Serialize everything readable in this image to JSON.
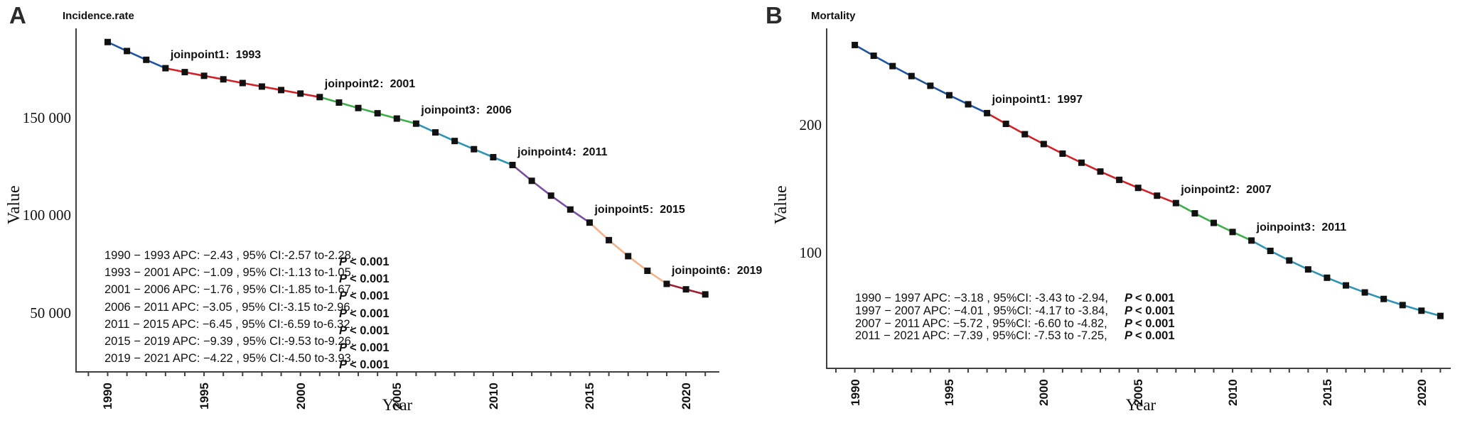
{
  "figure": {
    "background": "#ffffff"
  },
  "chart_data": [
    {
      "type": "line",
      "panel_label": "A",
      "title": "Incidence.rate",
      "xlabel": "Year",
      "ylabel": "Value",
      "grid": false,
      "legend_position": "none",
      "marker": "square",
      "marker_color": "#111111",
      "x": [
        1990,
        1991,
        1992,
        1993,
        1994,
        1995,
        1996,
        1997,
        1998,
        1999,
        2000,
        2001,
        2002,
        2003,
        2004,
        2005,
        2006,
        2007,
        2008,
        2009,
        2010,
        2011,
        2012,
        2013,
        2014,
        2015,
        2016,
        2017,
        2018,
        2019,
        2020,
        2021
      ],
      "values": [
        189000,
        184400,
        179900,
        175600,
        173600,
        171700,
        169900,
        168000,
        166200,
        164400,
        162600,
        160800,
        158000,
        155200,
        152500,
        149800,
        147200,
        142700,
        138300,
        134100,
        130000,
        126000,
        117900,
        110300,
        103200,
        96500,
        87500,
        79300,
        71800,
        65100,
        62300,
        59700
      ],
      "xlim": [
        1988.36,
        2021.73
      ],
      "ylim": [
        20000,
        196000
      ],
      "x_ticks": [
        1990,
        1995,
        2000,
        2005,
        2010,
        2015,
        2020
      ],
      "minor_ticks": {
        "from": 1989,
        "to": 2021,
        "step": 1
      },
      "y_ticks": [
        {
          "value": 150000,
          "label": "150 000"
        },
        {
          "value": 100000,
          "label": "100 000"
        },
        {
          "value": 50000,
          "label": "50 000"
        }
      ],
      "segments": [
        {
          "from": 1990,
          "to": 1993,
          "color": "#1d54a0",
          "apc": -2.43
        },
        {
          "from": 1993,
          "to": 2001,
          "color": "#d22027",
          "apc": -1.09
        },
        {
          "from": 2001,
          "to": 2006,
          "color": "#3fad4c",
          "apc": -1.76
        },
        {
          "from": 2006,
          "to": 2011,
          "color": "#2f93b4",
          "apc": -3.05
        },
        {
          "from": 2011,
          "to": 2015,
          "color": "#7a4fa0",
          "apc": -6.45
        },
        {
          "from": 2015,
          "to": 2019,
          "color": "#f2b28b",
          "apc": -9.39
        },
        {
          "from": 2019,
          "to": 2021,
          "color": "#9e1d30",
          "apc": -4.22
        }
      ],
      "joinpoints": [
        {
          "label": "joinpoint1",
          "year": 1993
        },
        {
          "label": "joinpoint2",
          "year": 2001
        },
        {
          "label": "joinpoint3",
          "year": 2006
        },
        {
          "label": "joinpoint4",
          "year": 2011
        },
        {
          "label": "joinpoint5",
          "year": 2015
        },
        {
          "label": "joinpoint6",
          "year": 2019
        }
      ],
      "apc_annotations": [
        {
          "text": "1990 − 1993 APC: −2.43 , 95% CI:-2.57 to-2.28,",
          "p_italic": "P",
          "p_bold": "< 0.001"
        },
        {
          "text": "1993 − 2001 APC: −1.09 , 95% CI:-1.13 to-1.05,",
          "p_italic": "P",
          "p_bold": "< 0.001"
        },
        {
          "text": "2001 − 2006 APC: −1.76 , 95% CI:-1.85 to-1.67,",
          "p_italic": "P",
          "p_bold": "< 0.001"
        },
        {
          "text": "2006 − 2011 APC: −3.05 , 95% CI:-3.15 to-2.96,",
          "p_italic": "P",
          "p_bold": "< 0.001"
        },
        {
          "text": "2011 − 2015 APC: −6.45 , 95% CI:-6.59 to-6.32,",
          "p_italic": "P",
          "p_bold": "< 0.001"
        },
        {
          "text": "2015 − 2019 APC: −9.39 , 95% CI:-9.53 to-9.26,",
          "p_italic": "P",
          "p_bold": "< 0.001"
        },
        {
          "text": "2019 − 2021 APC: −4.22 , 95% CI:-4.50 to-3.93,",
          "p_italic": "P",
          "p_bold": "< 0.001"
        }
      ]
    },
    {
      "type": "line",
      "panel_label": "B",
      "title": "Mortality",
      "xlabel": "Year",
      "ylabel": "Value",
      "grid": false,
      "legend_position": "none",
      "marker": "square",
      "marker_color": "#111111",
      "x": [
        1990,
        1991,
        1992,
        1993,
        1994,
        1995,
        1996,
        1997,
        1998,
        1999,
        2000,
        2001,
        2002,
        2003,
        2004,
        2005,
        2006,
        2007,
        2008,
        2009,
        2010,
        2011,
        2012,
        2013,
        2014,
        2015,
        2016,
        2017,
        2018,
        2019,
        2020,
        2021
      ],
      "values": [
        263,
        254.6,
        246.5,
        238.7,
        231.1,
        223.7,
        216.6,
        209.7,
        201.3,
        193.2,
        185.5,
        178,
        170.9,
        164,
        157.5,
        151.2,
        145.1,
        139.3,
        131.3,
        123.8,
        116.7,
        110,
        101.9,
        94.4,
        87.4,
        80.9,
        74.9,
        69.4,
        64.3,
        59.5,
        55.1,
        51
      ],
      "xlim": [
        1988.51,
        2021.55
      ],
      "ylim": [
        10,
        276
      ],
      "x_ticks": [
        1990,
        1995,
        2000,
        2005,
        2010,
        2015,
        2020
      ],
      "minor_ticks": {
        "from": 1989,
        "to": 2021,
        "step": 1
      },
      "y_ticks": [
        {
          "value": 200,
          "label": "200"
        },
        {
          "value": 100,
          "label": "100"
        }
      ],
      "segments": [
        {
          "from": 1990,
          "to": 1997,
          "color": "#1d54a0",
          "apc": -3.18
        },
        {
          "from": 1997,
          "to": 2007,
          "color": "#d22027",
          "apc": -4.01
        },
        {
          "from": 2007,
          "to": 2011,
          "color": "#3fad4c",
          "apc": -5.72
        },
        {
          "from": 2011,
          "to": 2021,
          "color": "#2f93b4",
          "apc": -7.39
        }
      ],
      "joinpoints": [
        {
          "label": "joinpoint1",
          "year": 1997
        },
        {
          "label": "joinpoint2",
          "year": 2007
        },
        {
          "label": "joinpoint3",
          "year": 2011
        }
      ],
      "apc_annotations": [
        {
          "text": "1990 − 1997 APC: −3.18 , 95%CI: -3.43 to -2.94,",
          "p_italic": "P",
          "p_bold": "< 0.001"
        },
        {
          "text": "1997 − 2007 APC: −4.01 , 95%CI: -4.17 to -3.84,",
          "p_italic": "P",
          "p_bold": "< 0.001"
        },
        {
          "text": "2007 − 2011 APC: −5.72 , 95%CI: -6.60 to -4.82,",
          "p_italic": "P",
          "p_bold": "< 0.001"
        },
        {
          "text": "2011 − 2021 APC: −7.39 , 95%CI: -7.53 to -7.25,",
          "p_italic": "P",
          "p_bold": "< 0.001"
        }
      ]
    }
  ]
}
